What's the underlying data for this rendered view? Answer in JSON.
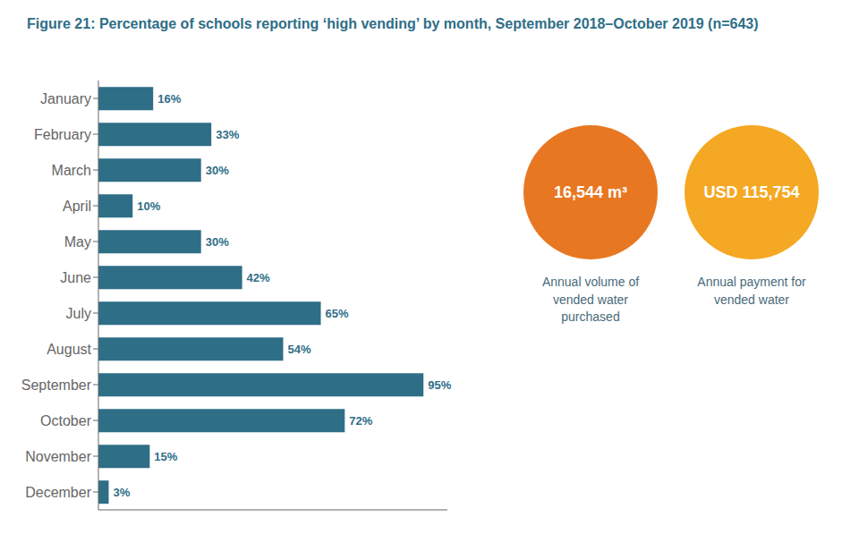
{
  "chart_data": {
    "type": "bar",
    "orientation": "horizontal",
    "title": "Figure 21: Percentage of schools reporting ‘high vending’ by month, September 2018–October 2019 (n=643)",
    "categories": [
      "January",
      "February",
      "March",
      "April",
      "May",
      "June",
      "July",
      "August",
      "September",
      "October",
      "November",
      "December"
    ],
    "values": [
      16,
      33,
      30,
      10,
      30,
      42,
      65,
      54,
      95,
      72,
      15,
      3
    ],
    "value_labels": [
      "16%",
      "33%",
      "30%",
      "10%",
      "30%",
      "42%",
      "65%",
      "54%",
      "95%",
      "72%",
      "15%",
      "3%"
    ],
    "data_labels": true,
    "color": "#2e6e87",
    "xlim": [
      0,
      102
    ],
    "grid": false,
    "tick_labels": "y",
    "annotations": [
      {
        "text": "16,544 m³",
        "label": "Annual volume of vended water purchased",
        "color": "#e87722"
      },
      {
        "text": "USD 115,754",
        "label": "Annual payment for vended water",
        "color": "#f5a823"
      }
    ]
  }
}
